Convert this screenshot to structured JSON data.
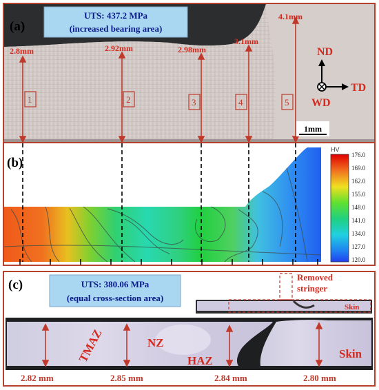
{
  "panel_a": {
    "label": "(a)",
    "uts_line1": "UTS: 437.2 MPa",
    "uts_line2": "(increased bearing area)",
    "thickness_labels": [
      "2.8mm",
      "2.92mm",
      "2.98mm",
      "3.1mm",
      "4.1mm"
    ],
    "zone_numbers": [
      "1",
      "2",
      "3",
      "4",
      "5"
    ],
    "scale_bar": "1mm",
    "axes": {
      "nd": "ND",
      "td": "TD",
      "wd": "WD"
    }
  },
  "panel_b": {
    "label": "(b)",
    "colorbar_unit": "HV",
    "colorbar_ticks": [
      "176.0",
      "169.0",
      "162.0",
      "155.0",
      "148.0",
      "141.0",
      "134.0",
      "127.0",
      "120.0"
    ]
  },
  "panel_c": {
    "label": "(c)",
    "uts_line1": "UTS: 380.06 MPa",
    "uts_line2": "(equal cross-section area)",
    "inset_label_stringer_1": "Removed",
    "inset_label_stringer_2": "stringer",
    "inset_label_skin": "Skin",
    "zone_tmaz": "TMAZ",
    "zone_nz": "NZ",
    "zone_haz": "HAZ",
    "zone_skin": "Skin",
    "thickness_labels": [
      "2.82 mm",
      "2.85 mm",
      "2.84 mm",
      "2.80 mm"
    ]
  },
  "colors": {
    "frame": "#b5402c",
    "arrow": "#c0392b",
    "label_text": "#d42a1f",
    "uts_box": "#a9d7f2",
    "uts_text": "#0a1a8c"
  }
}
